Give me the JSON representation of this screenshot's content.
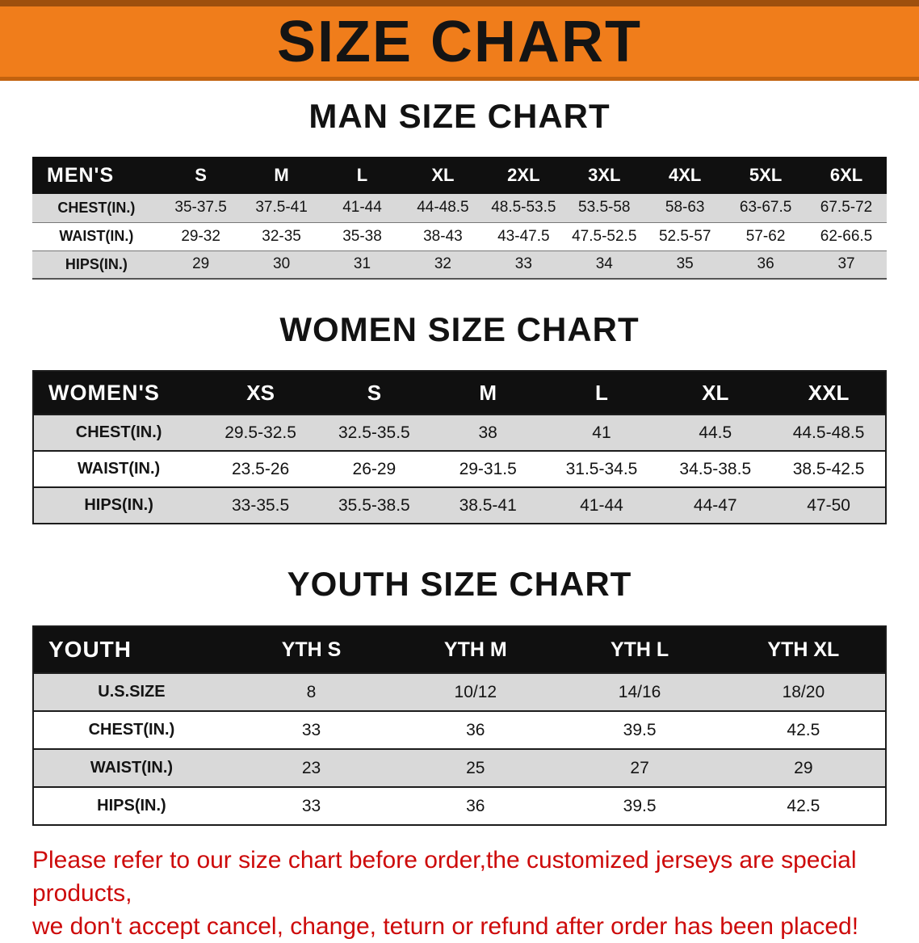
{
  "banner": {
    "title": "SIZE CHART"
  },
  "chart_data": [
    {
      "type": "table",
      "title": "MAN SIZE CHART",
      "corner_label": "MEN'S",
      "columns": [
        "S",
        "M",
        "L",
        "XL",
        "2XL",
        "3XL",
        "4XL",
        "5XL",
        "6XL"
      ],
      "rows": [
        {
          "label": "CHEST(IN.)",
          "values": [
            "35-37.5",
            "37.5-41",
            "41-44",
            "44-48.5",
            "48.5-53.5",
            "53.5-58",
            "58-63",
            "63-67.5",
            "67.5-72"
          ]
        },
        {
          "label": "WAIST(IN.)",
          "values": [
            "29-32",
            "32-35",
            "35-38",
            "38-43",
            "43-47.5",
            "47.5-52.5",
            "52.5-57",
            "57-62",
            "62-66.5"
          ]
        },
        {
          "label": "HIPS(IN.)",
          "values": [
            "29",
            "30",
            "31",
            "32",
            "33",
            "34",
            "35",
            "36",
            "37"
          ]
        }
      ]
    },
    {
      "type": "table",
      "title": "WOMEN SIZE CHART",
      "corner_label": "WOMEN'S",
      "columns": [
        "XS",
        "S",
        "M",
        "L",
        "XL",
        "XXL"
      ],
      "rows": [
        {
          "label": "CHEST(IN.)",
          "values": [
            "29.5-32.5",
            "32.5-35.5",
            "38",
            "41",
            "44.5",
            "44.5-48.5"
          ]
        },
        {
          "label": "WAIST(IN.)",
          "values": [
            "23.5-26",
            "26-29",
            "29-31.5",
            "31.5-34.5",
            "34.5-38.5",
            "38.5-42.5"
          ]
        },
        {
          "label": "HIPS(IN.)",
          "values": [
            "33-35.5",
            "35.5-38.5",
            "38.5-41",
            "41-44",
            "44-47",
            "47-50"
          ]
        }
      ]
    },
    {
      "type": "table",
      "title": "YOUTH SIZE CHART",
      "corner_label": "YOUTH",
      "columns": [
        "YTH S",
        "YTH M",
        "YTH L",
        "YTH XL"
      ],
      "rows": [
        {
          "label": "U.S.SIZE",
          "values": [
            "8",
            "10/12",
            "14/16",
            "18/20"
          ]
        },
        {
          "label": "CHEST(IN.)",
          "values": [
            "33",
            "36",
            "39.5",
            "42.5"
          ]
        },
        {
          "label": "WAIST(IN.)",
          "values": [
            "23",
            "25",
            "27",
            "29"
          ]
        },
        {
          "label": "HIPS(IN.)",
          "values": [
            "33",
            "36",
            "39.5",
            "42.5"
          ]
        }
      ]
    }
  ],
  "footer": {
    "lines": [
      "Please refer to our size chart before order,the customized jerseys are special products,",
      "we don't accept cancel, change, teturn or refund after order has been placed!"
    ]
  },
  "colors": {
    "banner-bg": "#f07d1b",
    "banner-edge-top": "#9e4f0d",
    "banner-edge-bottom": "#c2620f",
    "table-header-bg": "#101010",
    "row-alt-bg": "#d9d9d9",
    "note-red": "#cd0a0a"
  }
}
